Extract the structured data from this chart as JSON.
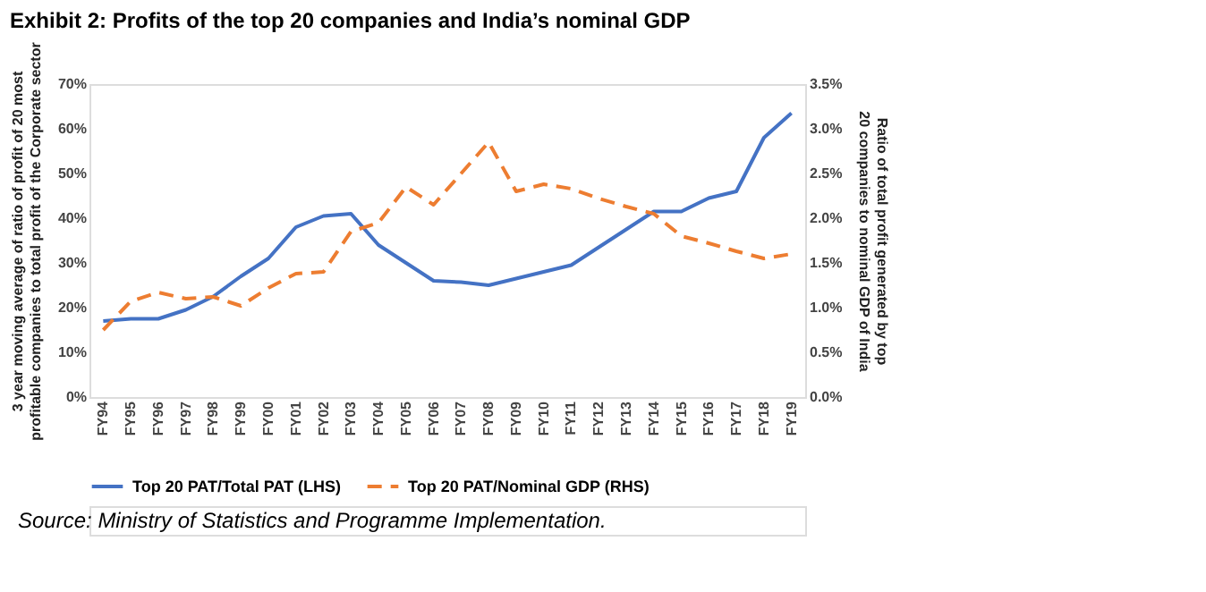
{
  "chart_data": {
    "type": "line",
    "title": "Exhibit 2: Profits of the top 20 companies and India’s nominal GDP",
    "categories": [
      "FY94",
      "FY95",
      "FY96",
      "FY97",
      "FY98",
      "FY99",
      "FY00",
      "FY01",
      "FY02",
      "FY03",
      "FY04",
      "FY05",
      "FY06",
      "FY07",
      "FY08",
      "FY09",
      "FY10",
      "FY11",
      "FY12",
      "FY13",
      "FY14",
      "FY15",
      "FY16",
      "FY17",
      "FY18",
      "FY19"
    ],
    "series": [
      {
        "name": "Top 20 PAT/Total PAT (LHS)",
        "color": "#4472c4",
        "line_style": "solid",
        "values": [
          17,
          17.5,
          17.5,
          19.5,
          22.5,
          27,
          31,
          38,
          40.5,
          41,
          34,
          30,
          26,
          25.7,
          25,
          26.5,
          28,
          29.5,
          33.5,
          37.5,
          41.5,
          41.5,
          44.5,
          46,
          58,
          63.5
        ]
      },
      {
        "name": "Top 20 PAT/Nominal GDP (RHS)",
        "color": "#ed7d31",
        "line_style": "dashed",
        "axis": "y2",
        "values": [
          0.75,
          1.07,
          1.17,
          1.1,
          1.12,
          1.02,
          1.22,
          1.38,
          1.4,
          1.85,
          1.95,
          2.35,
          2.15,
          2.5,
          2.85,
          2.3,
          2.38,
          2.33,
          2.22,
          2.13,
          2.05,
          1.8,
          1.72,
          1.63,
          1.55,
          1.6
        ]
      }
    ],
    "ylabel": "3 year moving average of ratio of profit of 20 most profitable companies to total profit of the Corporate sector",
    "y2label": "Ratio of total profit generated by top 20 companies to nominal GDP of India",
    "ylim": [
      0,
      70
    ],
    "yticks": [
      {
        "value": 0,
        "label": "0%"
      },
      {
        "value": 10,
        "label": "10%"
      },
      {
        "value": 20,
        "label": "20%"
      },
      {
        "value": 30,
        "label": "30%"
      },
      {
        "value": 40,
        "label": "40%"
      },
      {
        "value": 50,
        "label": "50%"
      },
      {
        "value": 60,
        "label": "60%"
      },
      {
        "value": 70,
        "label": "70%"
      }
    ],
    "y2lim": [
      0,
      3.5
    ],
    "y2ticks": [
      {
        "value": 0,
        "label": "0.0%"
      },
      {
        "value": 0.5,
        "label": "0.5%"
      },
      {
        "value": 1,
        "label": "1.0%"
      },
      {
        "value": 1.5,
        "label": "1.5%"
      },
      {
        "value": 2,
        "label": "2.0%"
      },
      {
        "value": 2.5,
        "label": "2.5%"
      },
      {
        "value": 3,
        "label": "3.0%"
      },
      {
        "value": 3.5,
        "label": "3.5%"
      }
    ],
    "grid": false,
    "legend": "bottom",
    "marker": "none",
    "annotations": [
      "Source: Ministry of Statistics and Programme Implementation."
    ]
  }
}
